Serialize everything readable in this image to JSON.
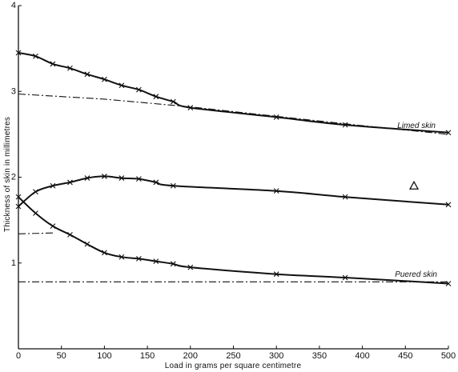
{
  "chart_data": {
    "type": "line",
    "title": "",
    "xlabel": "Load in grams per square centimetre",
    "ylabel": "Thickness of skin in millimetres",
    "xlim": [
      0,
      500
    ],
    "ylim": [
      0,
      4
    ],
    "x_ticks": [
      0,
      50,
      100,
      150,
      200,
      250,
      300,
      350,
      400,
      450,
      500
    ],
    "y_ticks": [
      1,
      2,
      3,
      4
    ],
    "grid": false,
    "series": [
      {
        "name": "Limed skin",
        "style": "solid",
        "x": [
          0,
          20,
          40,
          60,
          80,
          100,
          120,
          140,
          160,
          180,
          200,
          300,
          380,
          500
        ],
        "y": [
          3.45,
          3.41,
          3.32,
          3.27,
          3.2,
          3.14,
          3.07,
          3.02,
          2.94,
          2.88,
          2.81,
          2.7,
          2.61,
          2.52
        ]
      },
      {
        "style": "solid",
        "x": [
          0,
          20,
          40,
          60,
          80,
          100,
          120,
          140,
          160,
          180,
          300,
          380,
          500
        ],
        "y": [
          1.66,
          1.83,
          1.9,
          1.94,
          1.99,
          2.01,
          1.99,
          1.98,
          1.94,
          1.9,
          1.84,
          1.77,
          1.68
        ]
      },
      {
        "name": "Puered skin",
        "style": "solid",
        "x": [
          0,
          20,
          40,
          60,
          80,
          100,
          120,
          140,
          160,
          180,
          200,
          300,
          380,
          500
        ],
        "y": [
          1.77,
          1.58,
          1.43,
          1.33,
          1.22,
          1.12,
          1.07,
          1.05,
          1.02,
          0.99,
          0.95,
          0.87,
          0.83,
          0.76
        ]
      },
      {
        "style": "dash-dot",
        "x": [
          0,
          100,
          200,
          300,
          400,
          500
        ],
        "y": [
          2.97,
          2.91,
          2.82,
          2.71,
          2.6,
          2.5
        ]
      },
      {
        "style": "dash-dot",
        "x": [
          0,
          40
        ],
        "y": [
          1.34,
          1.35
        ]
      },
      {
        "style": "dash-dot",
        "x": [
          0,
          500
        ],
        "y": [
          0.78,
          0.78
        ]
      }
    ],
    "extra_marker": {
      "shape": "triangle",
      "x": 460,
      "y": 1.9
    }
  }
}
